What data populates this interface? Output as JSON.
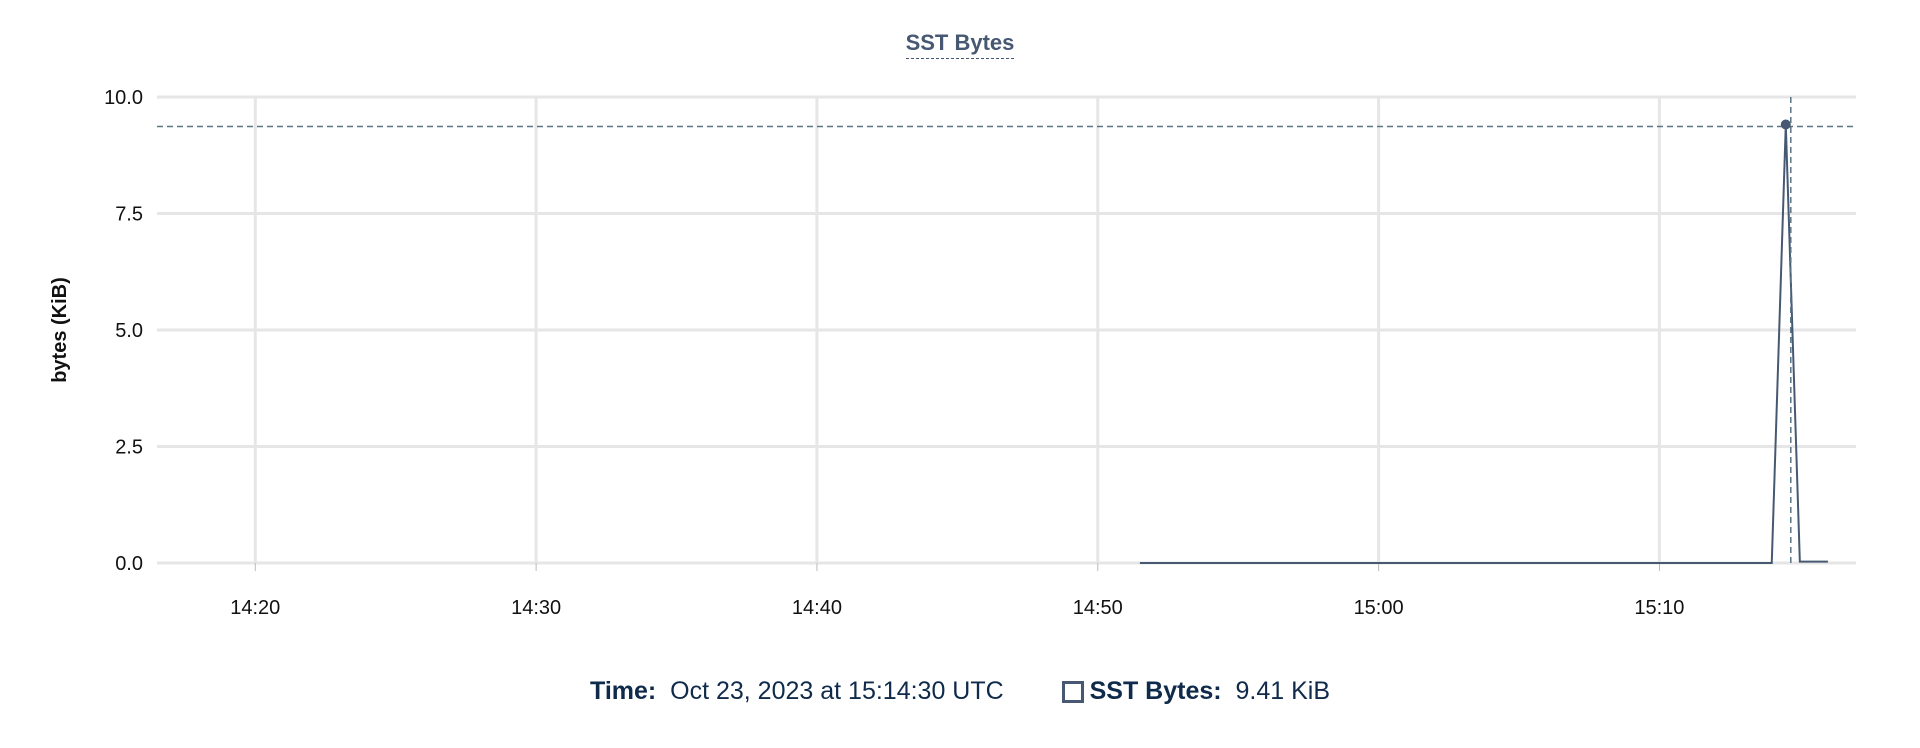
{
  "chart_data": {
    "type": "line",
    "title": "SST Bytes",
    "xlabel": "",
    "ylabel": "bytes (KiB)",
    "ylim": [
      0,
      10
    ],
    "yticks": [
      "0.0",
      "2.5",
      "5.0",
      "7.5",
      "10.0"
    ],
    "xlim": [
      "14:16:30",
      "15:17:00"
    ],
    "xticks": [
      "14:20",
      "14:30",
      "14:40",
      "14:50",
      "15:00",
      "15:10"
    ],
    "grid": true,
    "series": [
      {
        "name": "SST Bytes",
        "color": "#475872",
        "points": [
          {
            "x": "14:51:30",
            "y": 0
          },
          {
            "x": "15:14:00",
            "y": 0
          },
          {
            "x": "15:14:30",
            "y": 9.41
          },
          {
            "x": "15:15:00",
            "y": 0.03
          },
          {
            "x": "15:16:00",
            "y": 0.03
          }
        ]
      }
    ],
    "hover": {
      "x": "15:14:30",
      "y": 9.41
    }
  },
  "legend": {
    "time_label": "Time:",
    "time_value": "Oct 23, 2023 at 15:14:30 UTC",
    "series_label": "SST Bytes:",
    "series_value": "9.41 KiB"
  }
}
